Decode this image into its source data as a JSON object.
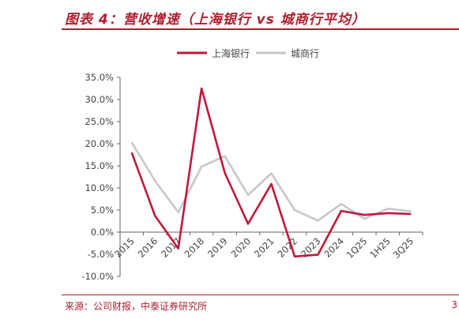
{
  "header": {
    "title": "图表 4：营收增速（上海银行 vs 城商行平均）"
  },
  "footer": {
    "source": "来源：公司财报，中泰证券研究所",
    "edge_mark": "3"
  },
  "chart_data": {
    "type": "line",
    "categories": [
      "2015",
      "2016",
      "2017",
      "2018",
      "2019",
      "2020",
      "2021",
      "2022",
      "2023",
      "2024",
      "1Q25",
      "1H25",
      "3Q25"
    ],
    "series": [
      {
        "name": "上海银行",
        "color": "#c0183a",
        "values": [
          18.0,
          3.7,
          -3.7,
          32.5,
          13.4,
          1.9,
          10.9,
          -5.5,
          -5.1,
          4.8,
          3.9,
          4.3,
          4.1
        ]
      },
      {
        "name": "城商行",
        "color": "#c8c8c8",
        "values": [
          20.3,
          11.6,
          4.5,
          14.8,
          17.2,
          8.4,
          13.3,
          5.0,
          2.6,
          6.4,
          3.0,
          5.3,
          4.7
        ]
      }
    ],
    "yticks": [
      "35.0%",
      "30.0%",
      "25.0%",
      "20.0%",
      "15.0%",
      "10.0%",
      "5.0%",
      "0.0%",
      "-5.0%",
      "-10.0%"
    ],
    "ylim": [
      -10,
      35
    ],
    "grid": false,
    "legend": "top"
  }
}
